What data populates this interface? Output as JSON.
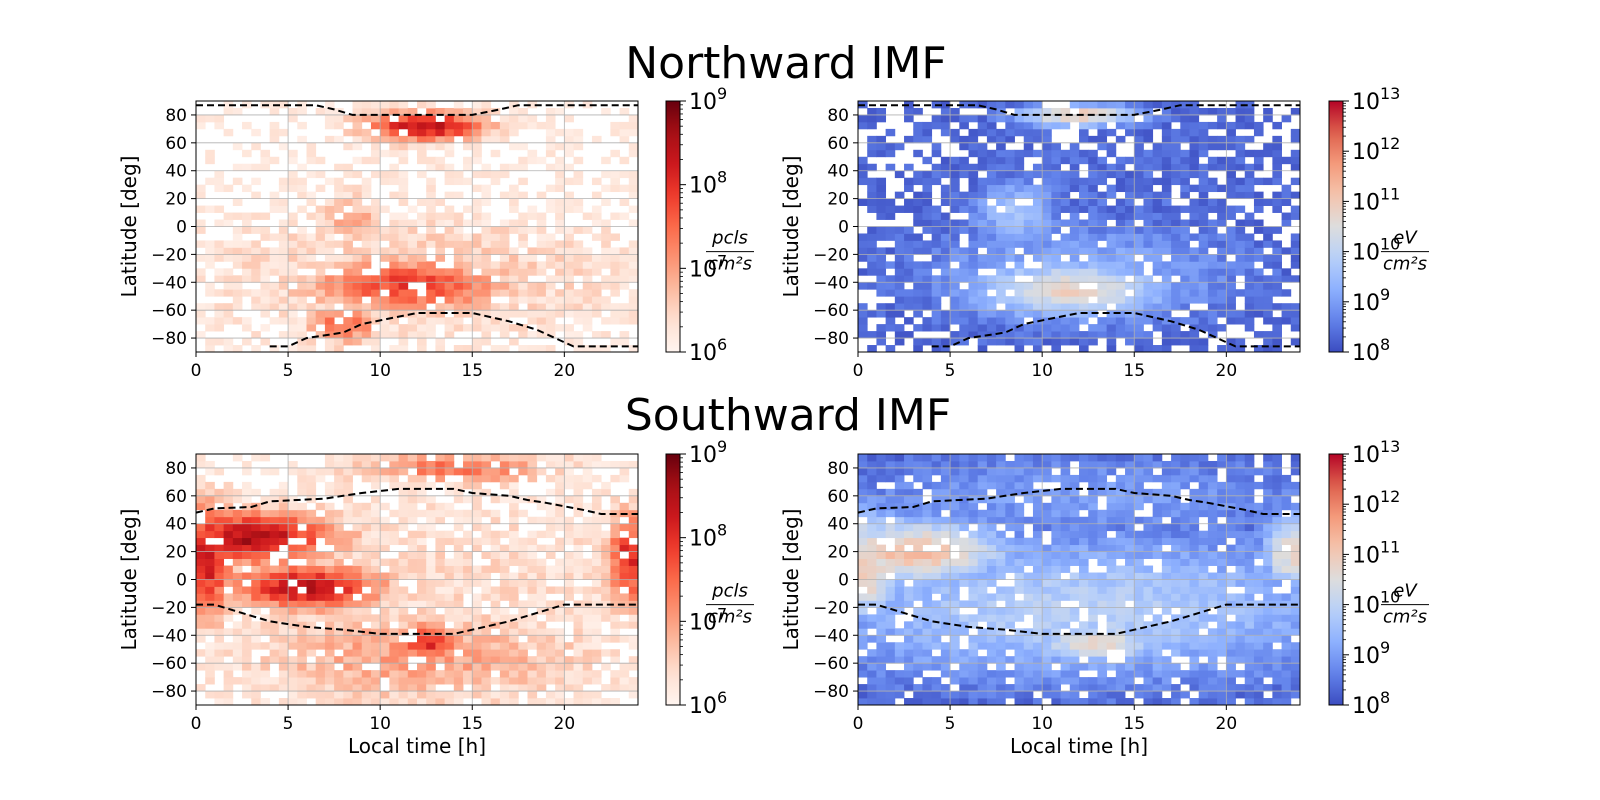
{
  "chart_data": [
    {
      "type": "heatmap",
      "group_title": "Northward IMF",
      "title": "",
      "xlabel": "",
      "ylabel": "Latitude [deg]",
      "xlim": [
        0,
        24
      ],
      "ylim": [
        -90,
        90
      ],
      "xticks": [
        0,
        5,
        10,
        15,
        20
      ],
      "yticks": [
        -80,
        -60,
        -40,
        -20,
        0,
        20,
        40,
        60,
        80
      ],
      "grid": true,
      "colormap": "Reds",
      "colorbar": {
        "scale": "log",
        "min_exp": 6,
        "max_exp": 9,
        "tick_base": "10",
        "tick_exps": [
          "6",
          "7",
          "8",
          "9"
        ],
        "unit_num": "pcls",
        "unit_den": "cm²s"
      },
      "blobs": [
        {
          "x": 12.5,
          "y": 72,
          "sx": 2.4,
          "sy": 8,
          "v": 8.4
        },
        {
          "x": 11.5,
          "y": -42,
          "sx": 4.0,
          "sy": 14,
          "v": 7.85
        },
        {
          "x": 8,
          "y": -70,
          "sx": 1.4,
          "sy": 10,
          "v": 7.5
        },
        {
          "x": 8.5,
          "y": 5,
          "sx": 1.4,
          "sy": 14,
          "v": 6.9
        },
        {
          "x": 12,
          "y": -35,
          "sx": 9,
          "sy": 35,
          "v": 6.6
        },
        {
          "x": 12,
          "y": 30,
          "sx": 12,
          "sy": 60,
          "v": 6.15
        }
      ],
      "boundary": [
        [
          0,
          87
        ],
        [
          6.5,
          87
        ],
        [
          7.5,
          84
        ],
        [
          8.5,
          80
        ],
        [
          15,
          80
        ],
        [
          16.5,
          84
        ],
        [
          17.5,
          87
        ],
        [
          24,
          87
        ]
      ],
      "boundary_lower": [
        [
          4,
          -86
        ],
        [
          5,
          -86
        ],
        [
          6,
          -80
        ],
        [
          8,
          -76
        ],
        [
          9,
          -70
        ],
        [
          10.5,
          -66
        ],
        [
          12,
          -62
        ],
        [
          15,
          -62
        ],
        [
          17,
          -68
        ],
        [
          18.5,
          -74
        ],
        [
          19.5,
          -80
        ],
        [
          20.5,
          -86
        ],
        [
          24,
          -86
        ]
      ]
    },
    {
      "type": "heatmap",
      "group_title": "",
      "title": "",
      "xlabel": "",
      "ylabel": "Latitude [deg]",
      "xlim": [
        0,
        24
      ],
      "ylim": [
        -90,
        90
      ],
      "xticks": [
        0,
        5,
        10,
        15,
        20
      ],
      "yticks": [
        -80,
        -60,
        -40,
        -20,
        0,
        20,
        40,
        60,
        80
      ],
      "grid": true,
      "colormap": "coolwarm",
      "colorbar": {
        "scale": "log",
        "min_exp": 8,
        "max_exp": 13,
        "tick_base": "10",
        "tick_exps": [
          "8",
          "9",
          "10",
          "11",
          "12",
          "13"
        ],
        "unit_num": "eV",
        "unit_den": "cm²s"
      },
      "blobs": [
        {
          "x": 12,
          "y": 80,
          "sx": 2.5,
          "sy": 6,
          "v": 11.0
        },
        {
          "x": 11.5,
          "y": -45,
          "sx": 4.0,
          "sy": 15,
          "v": 10.8
        },
        {
          "x": 8.5,
          "y": 10,
          "sx": 1.8,
          "sy": 18,
          "v": 9.6
        },
        {
          "x": 12,
          "y": -35,
          "sx": 7,
          "sy": 30,
          "v": 9.3
        },
        {
          "x": 12,
          "y": 20,
          "sx": 10,
          "sy": 60,
          "v": 8.4
        }
      ],
      "boundary": [
        [
          0,
          87
        ],
        [
          6.5,
          87
        ],
        [
          7.5,
          84
        ],
        [
          8.5,
          80
        ],
        [
          15,
          80
        ],
        [
          16.5,
          84
        ],
        [
          17.5,
          87
        ],
        [
          24,
          87
        ]
      ],
      "boundary_lower": [
        [
          4,
          -86
        ],
        [
          5,
          -86
        ],
        [
          6,
          -80
        ],
        [
          8,
          -76
        ],
        [
          9,
          -70
        ],
        [
          10.5,
          -66
        ],
        [
          12,
          -62
        ],
        [
          15,
          -62
        ],
        [
          17,
          -68
        ],
        [
          18.5,
          -74
        ],
        [
          19.5,
          -80
        ],
        [
          20.5,
          -86
        ],
        [
          24,
          -86
        ]
      ]
    },
    {
      "type": "heatmap",
      "group_title": "Southward IMF",
      "title": "",
      "xlabel": "Local time [h]",
      "ylabel": "Latitude [deg]",
      "xlim": [
        0,
        24
      ],
      "ylim": [
        -90,
        90
      ],
      "xticks": [
        0,
        5,
        10,
        15,
        20
      ],
      "yticks": [
        -80,
        -60,
        -40,
        -20,
        0,
        20,
        40,
        60,
        80
      ],
      "grid": true,
      "colormap": "Reds",
      "colorbar": {
        "scale": "log",
        "min_exp": 6,
        "max_exp": 9,
        "tick_base": "10",
        "tick_exps": [
          "6",
          "7",
          "8",
          "9"
        ],
        "unit_num": "pcls",
        "unit_den": "cm²s"
      },
      "blobs": [
        {
          "x": 3,
          "y": 30,
          "sx": 3.5,
          "sy": 14,
          "v": 8.5
        },
        {
          "x": 6,
          "y": -5,
          "sx": 3.0,
          "sy": 12,
          "v": 8.4
        },
        {
          "x": 0.5,
          "y": 15,
          "sx": 1.2,
          "sy": 30,
          "v": 8.3
        },
        {
          "x": 23.5,
          "y": 15,
          "sx": 0.8,
          "sy": 25,
          "v": 8.1
        },
        {
          "x": 12.5,
          "y": -45,
          "sx": 1.5,
          "sy": 10,
          "v": 8.0
        },
        {
          "x": 14,
          "y": 80,
          "sx": 4,
          "sy": 8,
          "v": 7.4
        },
        {
          "x": 12,
          "y": -55,
          "sx": 7,
          "sy": 25,
          "v": 7.0
        },
        {
          "x": 12,
          "y": 0,
          "sx": 14,
          "sy": 60,
          "v": 6.4
        }
      ],
      "boundary": [
        [
          0,
          48
        ],
        [
          1,
          51
        ],
        [
          3,
          52
        ],
        [
          4,
          56
        ],
        [
          7,
          58
        ],
        [
          8,
          60
        ],
        [
          9,
          62
        ],
        [
          11,
          65
        ],
        [
          14,
          65
        ],
        [
          15,
          62
        ],
        [
          17,
          60
        ],
        [
          18,
          57
        ],
        [
          19,
          55
        ],
        [
          21,
          50
        ],
        [
          22,
          47
        ],
        [
          24,
          47
        ]
      ],
      "boundary_lower": [
        [
          0,
          -18
        ],
        [
          1,
          -18
        ],
        [
          2,
          -22
        ],
        [
          3,
          -26
        ],
        [
          4,
          -30
        ],
        [
          6,
          -34
        ],
        [
          8,
          -36
        ],
        [
          10,
          -39
        ],
        [
          14,
          -39
        ],
        [
          15,
          -36
        ],
        [
          17,
          -30
        ],
        [
          18,
          -26
        ],
        [
          19,
          -22
        ],
        [
          20,
          -18
        ],
        [
          24,
          -18
        ]
      ]
    },
    {
      "type": "heatmap",
      "group_title": "",
      "title": "",
      "xlabel": "Local time [h]",
      "ylabel": "Latitude [deg]",
      "xlim": [
        0,
        24
      ],
      "ylim": [
        -90,
        90
      ],
      "xticks": [
        0,
        5,
        10,
        15,
        20
      ],
      "yticks": [
        -80,
        -60,
        -40,
        -20,
        0,
        20,
        40,
        60,
        80
      ],
      "grid": true,
      "colormap": "coolwarm",
      "colorbar": {
        "scale": "log",
        "min_exp": 8,
        "max_exp": 13,
        "tick_base": "10",
        "tick_exps": [
          "8",
          "9",
          "10",
          "11",
          "12",
          "13"
        ],
        "unit_num": "eV",
        "unit_den": "cm²s"
      },
      "blobs": [
        {
          "x": 3,
          "y": 20,
          "sx": 4,
          "sy": 18,
          "v": 11.2
        },
        {
          "x": 0.5,
          "y": 10,
          "sx": 1.5,
          "sy": 30,
          "v": 11.0
        },
        {
          "x": 23.5,
          "y": 20,
          "sx": 1.2,
          "sy": 20,
          "v": 10.8
        },
        {
          "x": 13,
          "y": -45,
          "sx": 3,
          "sy": 12,
          "v": 10.6
        },
        {
          "x": 12,
          "y": -20,
          "sx": 12,
          "sy": 40,
          "v": 9.9
        },
        {
          "x": 12,
          "y": 60,
          "sx": 12,
          "sy": 25,
          "v": 9.0
        }
      ],
      "boundary": [
        [
          0,
          48
        ],
        [
          1,
          51
        ],
        [
          3,
          52
        ],
        [
          4,
          56
        ],
        [
          7,
          58
        ],
        [
          8,
          60
        ],
        [
          9,
          62
        ],
        [
          11,
          65
        ],
        [
          14,
          65
        ],
        [
          15,
          62
        ],
        [
          17,
          60
        ],
        [
          18,
          57
        ],
        [
          19,
          55
        ],
        [
          21,
          50
        ],
        [
          22,
          47
        ],
        [
          24,
          47
        ]
      ],
      "boundary_lower": [
        [
          0,
          -18
        ],
        [
          1,
          -18
        ],
        [
          2,
          -22
        ],
        [
          3,
          -26
        ],
        [
          4,
          -30
        ],
        [
          6,
          -34
        ],
        [
          8,
          -36
        ],
        [
          10,
          -39
        ],
        [
          14,
          -39
        ],
        [
          15,
          -36
        ],
        [
          17,
          -30
        ],
        [
          18,
          -26
        ],
        [
          19,
          -22
        ],
        [
          20,
          -18
        ],
        [
          24,
          -18
        ]
      ]
    }
  ]
}
